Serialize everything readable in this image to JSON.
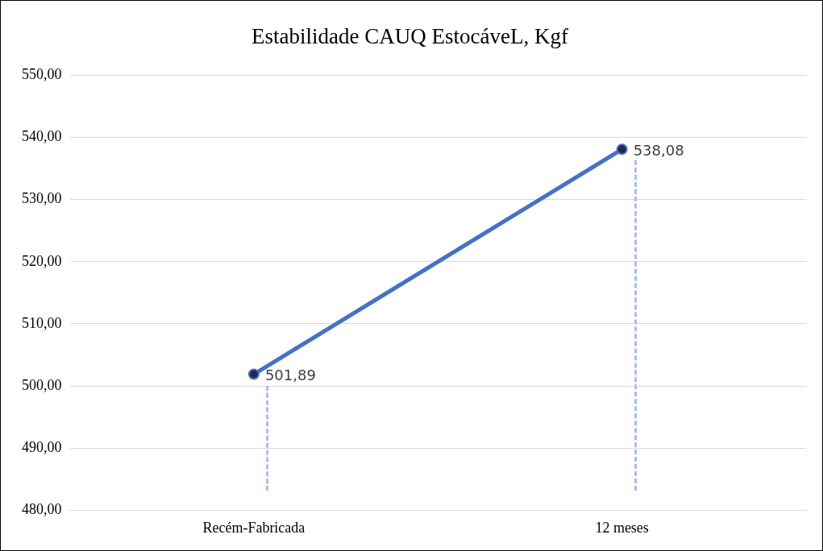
{
  "chart_data": {
    "type": "line",
    "title": "Estabilidade CAUQ EstocáveL, Kgf",
    "categories": [
      "Recém-Fabricada",
      "12 meses"
    ],
    "series": [
      {
        "color": "#4472c4",
        "values": [
          501.89,
          538.08
        ]
      }
    ],
    "ylim": [
      480,
      550
    ],
    "yticks": [
      {
        "value": 480,
        "label": "480,00"
      },
      {
        "value": 490,
        "label": "490,00"
      },
      {
        "value": 500,
        "label": "500,00"
      },
      {
        "value": 510,
        "label": "510,00"
      },
      {
        "value": 520,
        "label": "520,00"
      },
      {
        "value": 530,
        "label": "530,00"
      },
      {
        "value": 540,
        "label": "540,00"
      },
      {
        "value": 550,
        "label": "550,00"
      }
    ],
    "value_labels": [
      "501,89",
      "538,08"
    ],
    "grid": "y",
    "legend": false,
    "marker": "circle",
    "line_style": "solid"
  }
}
